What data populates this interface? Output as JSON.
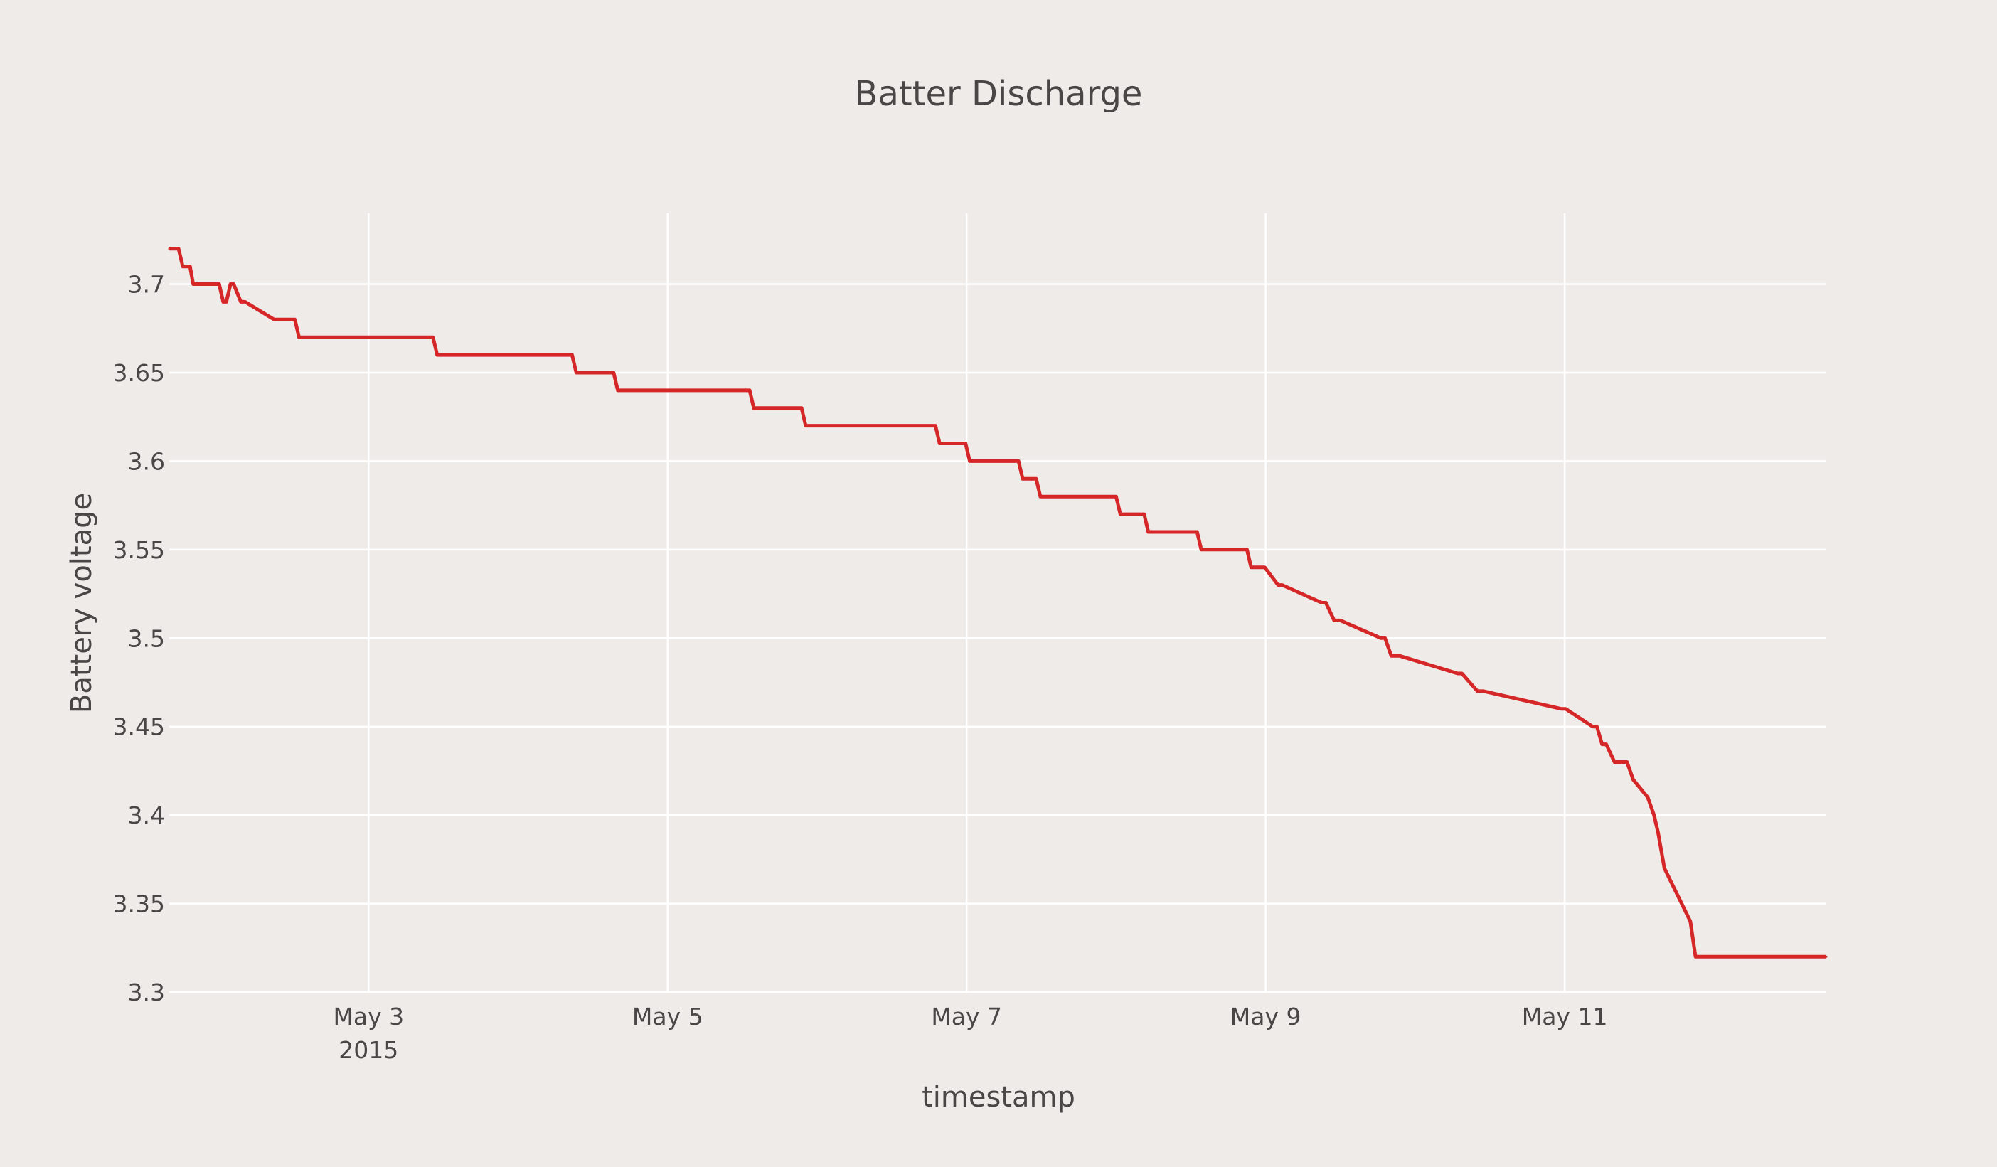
{
  "chart_data": {
    "type": "line",
    "title": "Batter Discharge",
    "xlabel": "timestamp",
    "ylabel": "Battery voltage",
    "x_range": [
      "2015-05-01T16:00",
      "2015-05-12T18:00"
    ],
    "ylim": [
      3.3,
      3.74
    ],
    "y_ticks": [
      {
        "value": 3.3,
        "label": "3.3"
      },
      {
        "value": 3.35,
        "label": "3.35"
      },
      {
        "value": 3.4,
        "label": "3.4"
      },
      {
        "value": 3.45,
        "label": "3.45"
      },
      {
        "value": 3.5,
        "label": "3.5"
      },
      {
        "value": 3.55,
        "label": "3.55"
      },
      {
        "value": 3.6,
        "label": "3.6"
      },
      {
        "value": 3.65,
        "label": "3.65"
      },
      {
        "value": 3.7,
        "label": "3.7"
      }
    ],
    "x_ticks": [
      {
        "value": "2015-05-03T00:00",
        "label": "May 3",
        "sublabel": "2015"
      },
      {
        "value": "2015-05-05T00:00",
        "label": "May 5",
        "sublabel": ""
      },
      {
        "value": "2015-05-07T00:00",
        "label": "May 7",
        "sublabel": ""
      },
      {
        "value": "2015-05-09T00:00",
        "label": "May 9",
        "sublabel": ""
      },
      {
        "value": "2015-05-11T00:00",
        "label": "May 11",
        "sublabel": ""
      }
    ],
    "grid": true,
    "legend": "none",
    "series": [
      {
        "color": "#d62728",
        "x": [
          "2015-05-01T16:00",
          "2015-05-01T17:30",
          "2015-05-01T18:10",
          "2015-05-01T19:20",
          "2015-05-01T19:50",
          "2015-05-02T00:00",
          "2015-05-02T00:40",
          "2015-05-02T01:10",
          "2015-05-02T01:50",
          "2015-05-02T02:20",
          "2015-05-02T03:30",
          "2015-05-02T04:10",
          "2015-05-02T08:50",
          "2015-05-02T09:30",
          "2015-05-02T12:10",
          "2015-05-02T12:50",
          "2015-05-03T10:20",
          "2015-05-03T11:00",
          "2015-05-04T08:40",
          "2015-05-04T09:20",
          "2015-05-04T15:20",
          "2015-05-04T16:00",
          "2015-05-05T13:10",
          "2015-05-05T13:50",
          "2015-05-05T21:30",
          "2015-05-05T22:10",
          "2015-05-06T19:00",
          "2015-05-06T19:40",
          "2015-05-06T23:50",
          "2015-05-07T00:30",
          "2015-05-07T08:20",
          "2015-05-07T09:00",
          "2015-05-07T11:10",
          "2015-05-07T11:50",
          "2015-05-08T00:00",
          "2015-05-08T00:40",
          "2015-05-08T04:30",
          "2015-05-08T05:10",
          "2015-05-08T13:00",
          "2015-05-08T13:40",
          "2015-05-08T21:00",
          "2015-05-08T21:40",
          "2015-05-08T23:50",
          "2015-05-09T02:00",
          "2015-05-09T02:40",
          "2015-05-09T09:00",
          "2015-05-09T09:40",
          "2015-05-09T11:00",
          "2015-05-09T12:00",
          "2015-05-09T18:30",
          "2015-05-09T19:10",
          "2015-05-09T20:10",
          "2015-05-09T21:30",
          "2015-05-10T06:50",
          "2015-05-10T07:30",
          "2015-05-10T10:00",
          "2015-05-10T11:00",
          "2015-05-10T23:30",
          "2015-05-11T00:10",
          "2015-05-11T04:30",
          "2015-05-11T05:10",
          "2015-05-11T06:00",
          "2015-05-11T06:40",
          "2015-05-11T08:00",
          "2015-05-11T10:00",
          "2015-05-11T11:00",
          "2015-05-11T13:20",
          "2015-05-11T14:20",
          "2015-05-11T15:00",
          "2015-05-11T16:00",
          "2015-05-11T20:10",
          "2015-05-11T21:00",
          "2015-05-12T18:00"
        ],
        "y": [
          3.72,
          3.72,
          3.71,
          3.71,
          3.7,
          3.7,
          3.69,
          3.69,
          3.7,
          3.7,
          3.69,
          3.69,
          3.68,
          3.68,
          3.68,
          3.67,
          3.67,
          3.66,
          3.66,
          3.65,
          3.65,
          3.64,
          3.64,
          3.63,
          3.63,
          3.62,
          3.62,
          3.61,
          3.61,
          3.6,
          3.6,
          3.59,
          3.59,
          3.58,
          3.58,
          3.57,
          3.57,
          3.56,
          3.56,
          3.55,
          3.55,
          3.54,
          3.54,
          3.53,
          3.53,
          3.52,
          3.52,
          3.51,
          3.51,
          3.5,
          3.5,
          3.49,
          3.49,
          3.48,
          3.48,
          3.47,
          3.47,
          3.46,
          3.46,
          3.45,
          3.45,
          3.44,
          3.44,
          3.43,
          3.43,
          3.42,
          3.41,
          3.4,
          3.39,
          3.37,
          3.34,
          3.32,
          3.32
        ]
      }
    ]
  }
}
